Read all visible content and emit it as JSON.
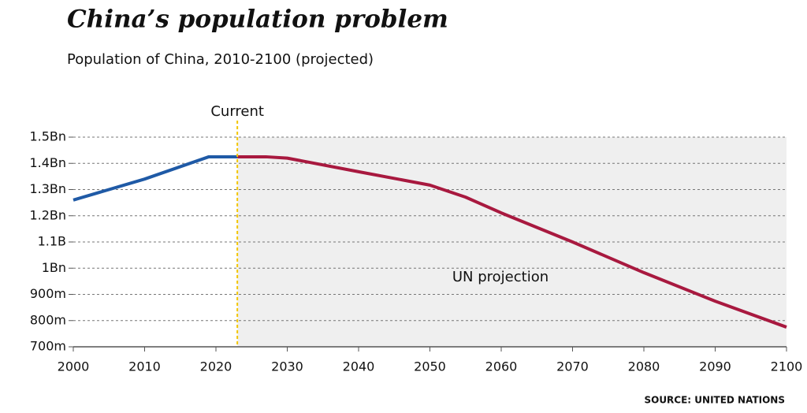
{
  "chart_data": {
    "type": "line",
    "title": "China’s population problem",
    "subtitle": "Population of China, 2010-2100 (projected)",
    "source": "SOURCE: UNITED NATIONS",
    "x": [
      2000,
      2010,
      2019,
      2023,
      2027,
      2030,
      2040,
      2050,
      2055,
      2060,
      2070,
      2080,
      2090,
      2100
    ],
    "series": [
      {
        "color": "#1f5aa6",
        "values": [
          1260,
          1340,
          1425,
          1425,
          null,
          null,
          null,
          null,
          null,
          null,
          null,
          null,
          null,
          null
        ]
      },
      {
        "color": "#a8193f",
        "values": [
          null,
          null,
          null,
          1425,
          1425,
          1420,
          1368,
          1317,
          1271,
          1211,
          1100,
          983,
          874,
          775
        ]
      }
    ],
    "xlim": [
      2000,
      2100
    ],
    "xticks": [
      2000,
      2010,
      2020,
      2030,
      2040,
      2050,
      2060,
      2070,
      2080,
      2090,
      2100
    ],
    "ylim": [
      700,
      1500
    ],
    "yticks": [
      {
        "value": 700,
        "label": "700m"
      },
      {
        "value": 800,
        "label": "800m"
      },
      {
        "value": 900,
        "label": "900m"
      },
      {
        "value": 1000,
        "label": "1Bn"
      },
      {
        "value": 1100,
        "label": "1.1B"
      },
      {
        "value": 1200,
        "label": "1.2Bn"
      },
      {
        "value": 1300,
        "label": "1.3Bn"
      },
      {
        "value": 1400,
        "label": "1.4Bn"
      },
      {
        "value": 1500,
        "label": "1.5Bn"
      }
    ],
    "grid": true,
    "annotations": [
      {
        "text": "Current",
        "x": 2023,
        "color": "#f2c500"
      },
      {
        "text": "UN projection",
        "shade": "#efefef"
      }
    ]
  }
}
